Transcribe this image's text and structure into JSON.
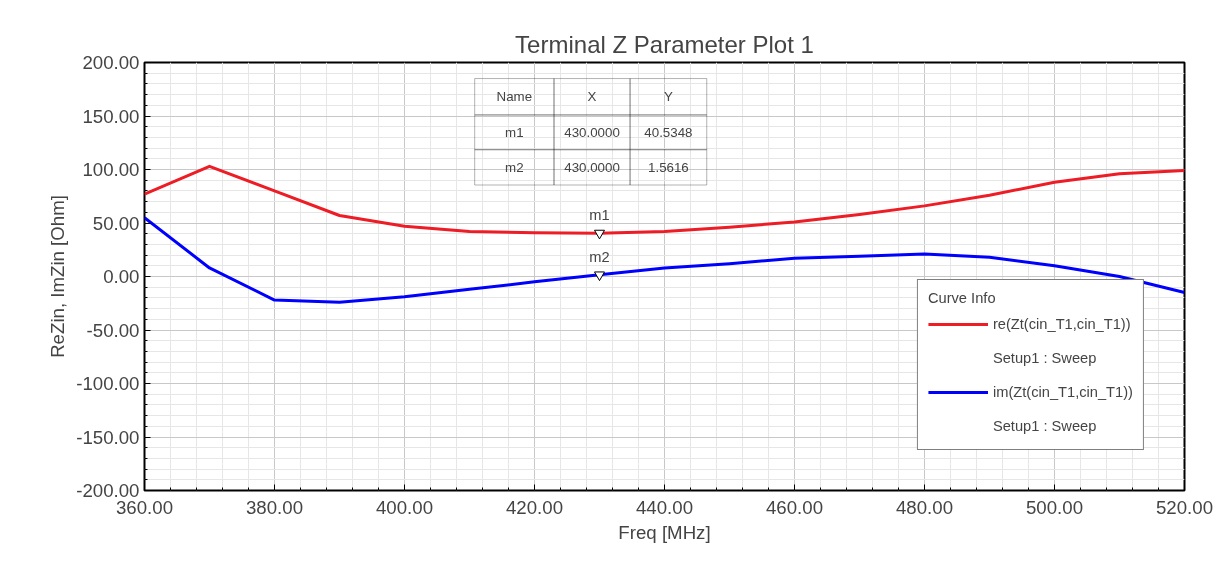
{
  "chart_data": {
    "type": "line",
    "title": "Terminal Z Parameter Plot 1",
    "xlabel": "Freq [MHz]",
    "ylabel": "ReZin, ImZin [Ohm]",
    "legend_title": "Curve Info",
    "legend": "bottom right",
    "grid": true,
    "line_style": "solid",
    "marker": "none",
    "x": [
      360,
      370,
      380,
      390,
      400,
      410,
      420,
      430,
      440,
      450,
      460,
      470,
      480,
      490,
      500,
      510,
      520
    ],
    "series": [
      {
        "name": "re(Zt(cin_T1,cin_T1))",
        "color": "#ee1c25",
        "values": [
          77,
          103,
          80,
          57,
          47,
          42,
          41,
          40.5,
          42,
          46,
          51,
          58,
          66,
          76,
          88,
          96,
          99
        ]
      },
      {
        "name": "im(Zt(cin_T1,cin_T1))",
        "color": "#0000ff",
        "values": [
          55,
          8,
          -22,
          -24,
          -19,
          -12,
          -5,
          1.6,
          8,
          12,
          17,
          19,
          21,
          18,
          10,
          0,
          -15
        ]
      }
    ],
    "xlim": [
      360,
      520
    ],
    "ylim": [
      -200,
      200
    ],
    "xticks": [
      {
        "value": 360,
        "label": "360.00"
      },
      {
        "value": 380,
        "label": "380.00"
      },
      {
        "value": 400,
        "label": "400.00"
      },
      {
        "value": 420,
        "label": "420.00"
      },
      {
        "value": 440,
        "label": "440.00"
      },
      {
        "value": 460,
        "label": "460.00"
      },
      {
        "value": 480,
        "label": "480.00"
      },
      {
        "value": 500,
        "label": "500.00"
      },
      {
        "value": 520,
        "label": "520.00"
      }
    ],
    "yticks": [
      {
        "value": -200,
        "label": "-200.00"
      },
      {
        "value": -150,
        "label": "-150.00"
      },
      {
        "value": -100,
        "label": "-100.00"
      },
      {
        "value": -50,
        "label": "-50.00"
      },
      {
        "value": 0,
        "label": "0.00"
      },
      {
        "value": 50,
        "label": "50.00"
      },
      {
        "value": 100,
        "label": "100.00"
      },
      {
        "value": 150,
        "label": "150.00"
      },
      {
        "value": 200,
        "label": "200.00"
      }
    ],
    "annotations": [
      {
        "text": "m1",
        "x": 430,
        "y": 40.5348
      },
      {
        "text": "m2",
        "x": 430,
        "y": 1.5616
      },
      "Name",
      "X",
      "Y",
      "m1",
      "430.0000",
      "40.5348",
      "m2",
      "430.0000",
      "1.5616",
      "Setup1 : Sweep",
      "Setup1 : Sweep"
    ]
  }
}
